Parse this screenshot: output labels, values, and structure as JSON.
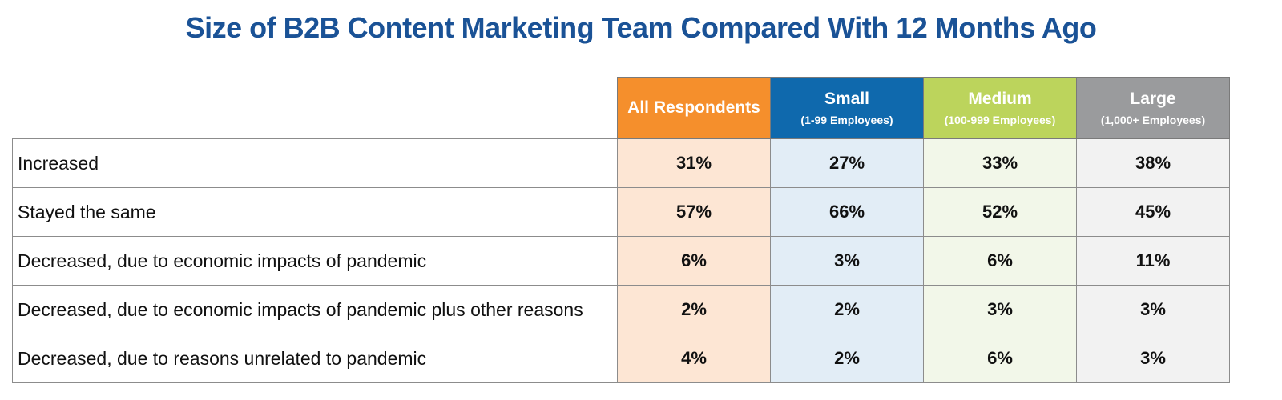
{
  "title": "Size of B2B Content Marketing Team Compared With 12 Months Ago",
  "columns": [
    {
      "label": "All Respondents",
      "sub": "",
      "color": "#f58f2c"
    },
    {
      "label": "Small",
      "sub": "(1-99 Employees)",
      "color": "#0f69ad"
    },
    {
      "label": "Medium",
      "sub": "(100-999 Employees)",
      "color": "#bcd45c"
    },
    {
      "label": "Large",
      "sub": "(1,000+ Employees)",
      "color": "#9a9b9d"
    }
  ],
  "rows": [
    {
      "label": "Increased",
      "values": [
        "31%",
        "27%",
        "33%",
        "38%"
      ]
    },
    {
      "label": "Stayed the same",
      "values": [
        "57%",
        "66%",
        "52%",
        "45%"
      ]
    },
    {
      "label": "Decreased, due to economic impacts of pandemic",
      "values": [
        "6%",
        "3%",
        "6%",
        "11%"
      ]
    },
    {
      "label": "Decreased, due to economic impacts of pandemic plus other reasons",
      "values": [
        "2%",
        "2%",
        "3%",
        "3%"
      ]
    },
    {
      "label": "Decreased, due to reasons unrelated to pandemic",
      "values": [
        "4%",
        "2%",
        "6%",
        "3%"
      ]
    }
  ],
  "chart_data": {
    "type": "table",
    "title": "Size of B2B Content Marketing Team Compared With 12 Months Ago",
    "columns": [
      "All Respondents",
      "Small (1-99 Employees)",
      "Medium (100-999 Employees)",
      "Large (1,000+ Employees)"
    ],
    "categories": [
      "Increased",
      "Stayed the same",
      "Decreased, due to economic impacts of pandemic",
      "Decreased, due to economic impacts of pandemic plus other reasons",
      "Decreased, due to reasons unrelated to pandemic"
    ],
    "series": [
      {
        "name": "All Respondents",
        "values": [
          31,
          57,
          6,
          2,
          4
        ]
      },
      {
        "name": "Small (1-99 Employees)",
        "values": [
          27,
          66,
          3,
          2,
          2
        ]
      },
      {
        "name": "Medium (100-999 Employees)",
        "values": [
          33,
          52,
          6,
          3,
          6
        ]
      },
      {
        "name": "Large (1,000+ Employees)",
        "values": [
          38,
          45,
          11,
          3,
          3
        ]
      }
    ],
    "unit": "%"
  }
}
